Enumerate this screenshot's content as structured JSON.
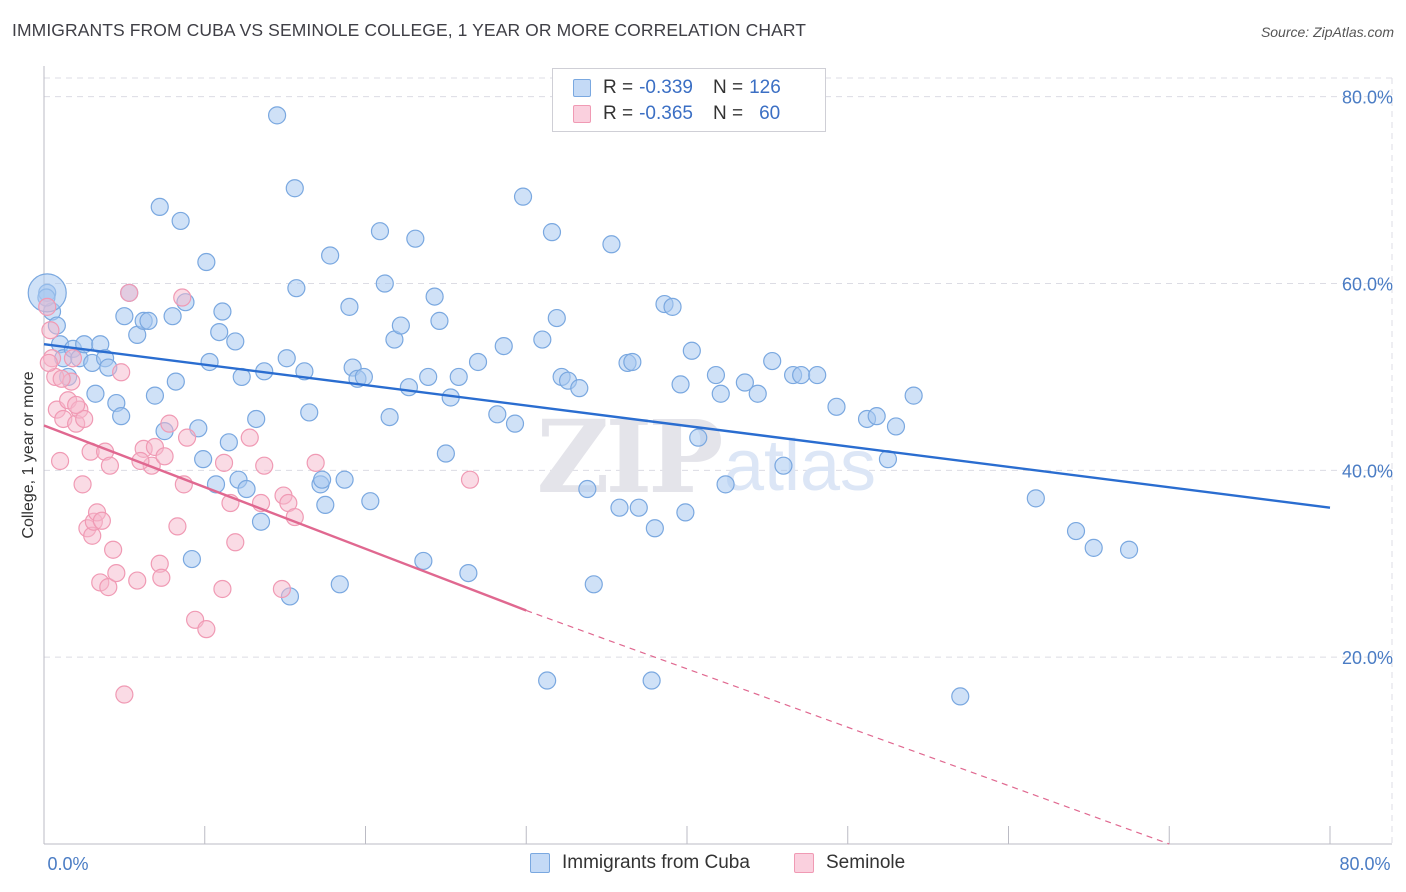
{
  "title": "IMMIGRANTS FROM CUBA VS SEMINOLE COLLEGE, 1 YEAR OR MORE CORRELATION CHART",
  "source": "Source: ZipAtlas.com",
  "watermark": {
    "zip": "ZIP",
    "atlas": "atlas"
  },
  "legend": {
    "rows": [
      {
        "r_label": "R =",
        "r_value": "-0.339",
        "n_label": "N =",
        "n_value": "126",
        "color": "#a8c8f0"
      },
      {
        "r_label": "R =",
        "r_value": "-0.365",
        "n_label": "N =",
        "n_value": "60",
        "color": "#f6b8cc"
      }
    ]
  },
  "bottom_legend": [
    "Immigrants from Cuba",
    "Seminole"
  ],
  "chart_data": {
    "type": "scatter",
    "title": "IMMIGRANTS FROM CUBA VS SEMINOLE COLLEGE, 1 YEAR OR MORE CORRELATION CHART",
    "xlabel": "",
    "ylabel": "College, 1 year or more",
    "xlim": [
      0,
      80
    ],
    "ylim": [
      0,
      82
    ],
    "x_tick_labels": [
      "0.0%",
      "80.0%"
    ],
    "y_ticks": [
      20,
      40,
      60,
      80
    ],
    "y_tick_labels": [
      "20.0%",
      "40.0%",
      "60.0%",
      "80.0%"
    ],
    "grid": true,
    "series": [
      {
        "name": "Immigrants from Cuba",
        "color": "#7aa8e0",
        "fill": "#a8c8f0",
        "trend": {
          "x": [
            0,
            80
          ],
          "y": [
            53.5,
            36.0
          ],
          "color": "#2a6dd0"
        },
        "points": [
          [
            0.2,
            59.0
          ],
          [
            0.5,
            57.0
          ],
          [
            0.8,
            55.5
          ],
          [
            1.0,
            53.5
          ],
          [
            1.2,
            52.0
          ],
          [
            1.5,
            50.0
          ],
          [
            1.8,
            53.0
          ],
          [
            2.2,
            52.0
          ],
          [
            2.5,
            53.5
          ],
          [
            3.0,
            51.5
          ],
          [
            3.2,
            48.2
          ],
          [
            3.5,
            53.5
          ],
          [
            3.8,
            52.0
          ],
          [
            4.0,
            51.0
          ],
          [
            4.5,
            47.2
          ],
          [
            4.8,
            45.8
          ],
          [
            5.0,
            56.5
          ],
          [
            5.3,
            59.0
          ],
          [
            5.8,
            54.5
          ],
          [
            6.2,
            56.0
          ],
          [
            6.5,
            56.0
          ],
          [
            6.9,
            48.0
          ],
          [
            7.2,
            68.2
          ],
          [
            7.5,
            44.2
          ],
          [
            8.0,
            56.5
          ],
          [
            8.2,
            49.5
          ],
          [
            8.5,
            66.7
          ],
          [
            8.8,
            58.0
          ],
          [
            9.2,
            30.5
          ],
          [
            9.6,
            44.5
          ],
          [
            9.9,
            41.2
          ],
          [
            10.1,
            62.3
          ],
          [
            10.3,
            51.6
          ],
          [
            10.7,
            38.5
          ],
          [
            10.9,
            54.8
          ],
          [
            11.1,
            57.0
          ],
          [
            11.5,
            43.0
          ],
          [
            11.9,
            53.8
          ],
          [
            12.1,
            39.0
          ],
          [
            12.3,
            50.0
          ],
          [
            12.6,
            38.0
          ],
          [
            13.2,
            45.5
          ],
          [
            13.5,
            34.5
          ],
          [
            13.7,
            50.6
          ],
          [
            14.5,
            78.0
          ],
          [
            15.1,
            52.0
          ],
          [
            15.3,
            26.5
          ],
          [
            15.6,
            70.2
          ],
          [
            15.7,
            59.5
          ],
          [
            16.2,
            50.6
          ],
          [
            16.5,
            46.2
          ],
          [
            17.2,
            38.5
          ],
          [
            17.3,
            39.0
          ],
          [
            17.5,
            36.3
          ],
          [
            17.8,
            63.0
          ],
          [
            18.4,
            27.8
          ],
          [
            18.7,
            39.0
          ],
          [
            19.0,
            57.5
          ],
          [
            19.2,
            51.0
          ],
          [
            19.5,
            49.8
          ],
          [
            19.9,
            50.0
          ],
          [
            20.3,
            36.7
          ],
          [
            20.9,
            65.6
          ],
          [
            21.2,
            60.0
          ],
          [
            21.5,
            45.7
          ],
          [
            21.8,
            54.0
          ],
          [
            22.2,
            55.5
          ],
          [
            22.7,
            48.9
          ],
          [
            23.1,
            64.8
          ],
          [
            23.6,
            30.3
          ],
          [
            23.9,
            50.0
          ],
          [
            24.3,
            58.6
          ],
          [
            24.6,
            56.0
          ],
          [
            25.0,
            41.8
          ],
          [
            25.3,
            47.8
          ],
          [
            25.8,
            50.0
          ],
          [
            26.4,
            29.0
          ],
          [
            27.0,
            51.6
          ],
          [
            28.2,
            46.0
          ],
          [
            28.6,
            53.3
          ],
          [
            29.3,
            45.0
          ],
          [
            29.8,
            69.3
          ],
          [
            31.0,
            54.0
          ],
          [
            31.3,
            17.5
          ],
          [
            31.9,
            56.3
          ],
          [
            32.2,
            50.0
          ],
          [
            32.6,
            49.6
          ],
          [
            33.3,
            48.8
          ],
          [
            31.6,
            65.5
          ],
          [
            33.8,
            38.0
          ],
          [
            34.2,
            27.8
          ],
          [
            35.3,
            64.2
          ],
          [
            35.8,
            36.0
          ],
          [
            36.3,
            51.5
          ],
          [
            36.6,
            51.6
          ],
          [
            37.0,
            36.0
          ],
          [
            37.8,
            17.5
          ],
          [
            38.0,
            33.8
          ],
          [
            38.6,
            57.8
          ],
          [
            39.1,
            57.5
          ],
          [
            39.6,
            49.2
          ],
          [
            39.9,
            35.5
          ],
          [
            40.3,
            52.8
          ],
          [
            40.7,
            43.5
          ],
          [
            41.8,
            50.2
          ],
          [
            42.1,
            48.2
          ],
          [
            42.4,
            38.5
          ],
          [
            43.6,
            49.4
          ],
          [
            44.4,
            48.2
          ],
          [
            45.3,
            51.7
          ],
          [
            46.0,
            40.5
          ],
          [
            46.6,
            50.2
          ],
          [
            47.1,
            50.2
          ],
          [
            48.1,
            50.2
          ],
          [
            49.3,
            46.8
          ],
          [
            51.2,
            45.5
          ],
          [
            51.8,
            45.8
          ],
          [
            52.5,
            41.2
          ],
          [
            53.0,
            44.7
          ],
          [
            54.1,
            48.0
          ],
          [
            57.0,
            15.8
          ],
          [
            61.7,
            37.0
          ],
          [
            64.2,
            33.5
          ],
          [
            65.3,
            31.7
          ],
          [
            67.5,
            31.5
          ],
          [
            0.15,
            58.5
          ]
        ],
        "large_point": [
          0.2,
          59.0
        ]
      },
      {
        "name": "Seminole",
        "color": "#f09ab4",
        "fill": "#f6b8cc",
        "trend": {
          "x": [
            0,
            30
          ],
          "y": [
            44.8,
            25.0
          ],
          "dashed_to": [
            70,
            0
          ],
          "color": "#e06890"
        },
        "points": [
          [
            0.2,
            57.5
          ],
          [
            0.4,
            55.0
          ],
          [
            0.5,
            52.0
          ],
          [
            0.7,
            50.0
          ],
          [
            0.8,
            46.5
          ],
          [
            1.0,
            41.0
          ],
          [
            1.2,
            45.5
          ],
          [
            1.5,
            47.5
          ],
          [
            1.7,
            49.5
          ],
          [
            1.8,
            52.0
          ],
          [
            2.0,
            45.0
          ],
          [
            2.2,
            46.5
          ],
          [
            2.4,
            38.5
          ],
          [
            2.5,
            45.5
          ],
          [
            2.7,
            33.8
          ],
          [
            2.9,
            42.0
          ],
          [
            3.0,
            33.0
          ],
          [
            3.1,
            34.5
          ],
          [
            3.3,
            35.5
          ],
          [
            3.5,
            28.0
          ],
          [
            3.8,
            42.0
          ],
          [
            4.0,
            27.5
          ],
          [
            4.1,
            40.5
          ],
          [
            4.3,
            31.5
          ],
          [
            4.5,
            29.0
          ],
          [
            4.8,
            50.5
          ],
          [
            5.0,
            16.0
          ],
          [
            5.3,
            59.0
          ],
          [
            5.8,
            28.2
          ],
          [
            6.2,
            42.3
          ],
          [
            6.7,
            40.5
          ],
          [
            6.9,
            42.5
          ],
          [
            7.2,
            30.0
          ],
          [
            7.3,
            28.5
          ],
          [
            7.8,
            45.0
          ],
          [
            8.3,
            34.0
          ],
          [
            8.6,
            58.5
          ],
          [
            8.7,
            38.5
          ],
          [
            8.9,
            43.5
          ],
          [
            9.4,
            24.0
          ],
          [
            10.1,
            23.0
          ],
          [
            11.1,
            27.3
          ],
          [
            11.2,
            40.8
          ],
          [
            11.6,
            36.5
          ],
          [
            11.9,
            32.3
          ],
          [
            12.8,
            43.5
          ],
          [
            13.5,
            36.5
          ],
          [
            13.7,
            40.5
          ],
          [
            14.8,
            27.3
          ],
          [
            14.9,
            37.3
          ],
          [
            15.2,
            36.5
          ],
          [
            15.6,
            35.0
          ],
          [
            16.9,
            40.8
          ],
          [
            26.5,
            39.0
          ],
          [
            0.3,
            51.5
          ],
          [
            1.1,
            49.8
          ],
          [
            2.0,
            47.0
          ],
          [
            3.6,
            34.6
          ],
          [
            6.0,
            41.0
          ],
          [
            7.5,
            41.5
          ]
        ]
      }
    ]
  }
}
